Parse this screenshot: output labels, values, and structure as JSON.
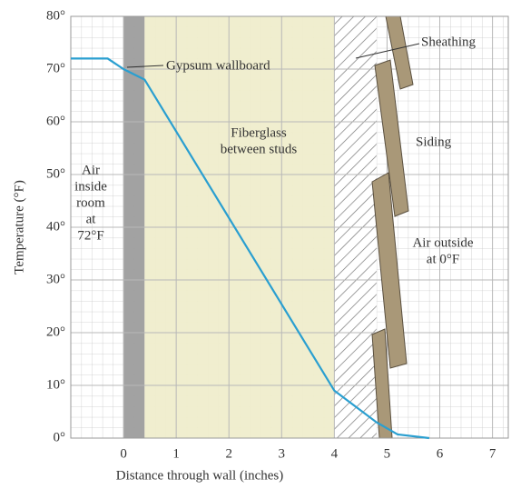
{
  "chart_data": {
    "type": "line",
    "x_label": "Distance through wall (inches)",
    "y_label": "Temperature (°F)",
    "xlim": [
      -1,
      7.3
    ],
    "ylim": [
      0,
      80
    ],
    "xticks": [
      0,
      1,
      2,
      3,
      4,
      5,
      6,
      7
    ],
    "yticks": [
      {
        "value": 0,
        "label": "0°"
      },
      {
        "value": 10,
        "label": "10°"
      },
      {
        "value": 20,
        "label": "20°"
      },
      {
        "value": 30,
        "label": "30°"
      },
      {
        "value": 40,
        "label": "40°"
      },
      {
        "value": 50,
        "label": "50°"
      },
      {
        "value": 60,
        "label": "60°"
      },
      {
        "value": 70,
        "label": "70°"
      },
      {
        "value": 80,
        "label": "80°"
      }
    ],
    "grid": true,
    "layers": [
      {
        "from": 0,
        "to": 0.4,
        "fill": "#9d9d9d"
      },
      {
        "from": 0.4,
        "to": 4,
        "fill": "#efedcc"
      },
      {
        "from": 4,
        "to": 4.8,
        "fill": "hatch"
      }
    ],
    "series": [
      {
        "color": "#2a9fd0",
        "x": [
          -1,
          -0.3,
          0,
          0.4,
          4,
          4.8,
          5.2,
          5.8
        ],
        "values": [
          72,
          72,
          70,
          68,
          9,
          3,
          0.7,
          0
        ]
      }
    ],
    "annotations": [
      [
        "Gypsum wallboard"
      ],
      [
        "Fiberglass",
        "between studs"
      ],
      [
        "Sheathing"
      ],
      [
        "Siding"
      ],
      [
        "Air",
        "inside",
        "room",
        "at",
        "72°F"
      ],
      [
        "Air outside",
        "at 0°F"
      ]
    ]
  }
}
